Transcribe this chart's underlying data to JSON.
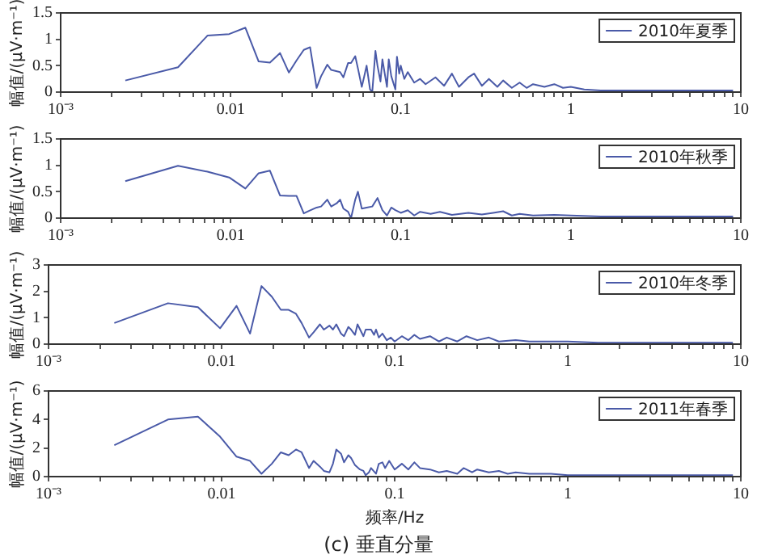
{
  "chart_data": [
    {
      "type": "line",
      "ylabel": "幅值/(μV·m⁻¹)",
      "log": "x",
      "legend": "top right",
      "grid": false,
      "marker": "none",
      "xlim": [
        0.001,
        10
      ],
      "xticks": [
        {
          "value": 0.001,
          "label": "10⁻³"
        },
        {
          "value": 0.002,
          "label": null
        },
        {
          "value": 0.003,
          "label": null
        },
        {
          "value": 0.004,
          "label": null
        },
        {
          "value": 0.005,
          "label": null
        },
        {
          "value": 0.006,
          "label": null
        },
        {
          "value": 0.007,
          "label": null
        },
        {
          "value": 0.008,
          "label": null
        },
        {
          "value": 0.009,
          "label": null
        },
        0.01,
        {
          "value": 0.02,
          "label": null
        },
        {
          "value": 0.03,
          "label": null
        },
        {
          "value": 0.04,
          "label": null
        },
        {
          "value": 0.05,
          "label": null
        },
        {
          "value": 0.06,
          "label": null
        },
        {
          "value": 0.07,
          "label": null
        },
        {
          "value": 0.08,
          "label": null
        },
        {
          "value": 0.09,
          "label": null
        },
        0.1,
        {
          "value": 0.2,
          "label": null
        },
        {
          "value": 0.3,
          "label": null
        },
        {
          "value": 0.4,
          "label": null
        },
        {
          "value": 0.5,
          "label": null
        },
        {
          "value": 0.6,
          "label": null
        },
        {
          "value": 0.7,
          "label": null
        },
        {
          "value": 0.8,
          "label": null
        },
        {
          "value": 0.9,
          "label": null
        },
        1,
        {
          "value": 2,
          "label": null
        },
        {
          "value": 3,
          "label": null
        },
        {
          "value": 4,
          "label": null
        },
        {
          "value": 5,
          "label": null
        },
        {
          "value": 6,
          "label": null
        },
        {
          "value": 7,
          "label": null
        },
        {
          "value": 8,
          "label": null
        },
        {
          "value": 9,
          "label": null
        },
        10
      ],
      "ylim": [
        0,
        1.5
      ],
      "yticks": [
        0,
        0.5,
        1,
        1.5
      ],
      "series": [
        {
          "name": "2010年夏季",
          "color": "#4a5aa8",
          "x": [
            0.0024,
            0.0049,
            0.0073,
            0.0098,
            0.0122,
            0.0146,
            0.017,
            0.0195,
            0.022,
            0.0244,
            0.0269,
            0.0293,
            0.032,
            0.034,
            0.037,
            0.039,
            0.044,
            0.046,
            0.049,
            0.051,
            0.054,
            0.056,
            0.059,
            0.061,
            0.063,
            0.066,
            0.068,
            0.071,
            0.073,
            0.076,
            0.078,
            0.081,
            0.083,
            0.085,
            0.088,
            0.093,
            0.095,
            0.098,
            0.1,
            0.105,
            0.11,
            0.12,
            0.13,
            0.14,
            0.16,
            0.18,
            0.2,
            0.22,
            0.25,
            0.27,
            0.3,
            0.33,
            0.37,
            0.4,
            0.45,
            0.5,
            0.55,
            0.6,
            0.7,
            0.8,
            0.9,
            1,
            1.2,
            1.5,
            2,
            3,
            4,
            6,
            9
          ],
          "values": [
            0.22,
            0.47,
            1.07,
            1.1,
            1.22,
            0.58,
            0.56,
            0.74,
            0.37,
            0.6,
            0.8,
            0.85,
            0.08,
            0.3,
            0.52,
            0.42,
            0.38,
            0.28,
            0.55,
            0.55,
            0.68,
            0.45,
            0.1,
            0.3,
            0.5,
            0.05,
            0,
            0.78,
            0.5,
            0.2,
            0.62,
            0.3,
            0.1,
            0.62,
            0.3,
            0.05,
            0.67,
            0.35,
            0.5,
            0.25,
            0.38,
            0.18,
            0.25,
            0.15,
            0.28,
            0.12,
            0.35,
            0.1,
            0.28,
            0.35,
            0.12,
            0.25,
            0.1,
            0.22,
            0.08,
            0.18,
            0.08,
            0.15,
            0.1,
            0.15,
            0.08,
            0.1,
            0.05,
            0.03,
            0.03,
            0.03,
            0.03,
            0.03,
            0.03
          ]
        }
      ]
    },
    {
      "type": "line",
      "ylabel": "幅值/(μV·m⁻¹)",
      "log": "x",
      "legend": "top right",
      "grid": false,
      "marker": "none",
      "xlim": [
        0.001,
        10
      ],
      "xticks": [
        {
          "value": 0.001,
          "label": "10⁻³"
        },
        {
          "value": 0.002,
          "label": null
        },
        {
          "value": 0.003,
          "label": null
        },
        {
          "value": 0.004,
          "label": null
        },
        {
          "value": 0.005,
          "label": null
        },
        {
          "value": 0.006,
          "label": null
        },
        {
          "value": 0.007,
          "label": null
        },
        {
          "value": 0.008,
          "label": null
        },
        {
          "value": 0.009,
          "label": null
        },
        0.01,
        {
          "value": 0.02,
          "label": null
        },
        {
          "value": 0.03,
          "label": null
        },
        {
          "value": 0.04,
          "label": null
        },
        {
          "value": 0.05,
          "label": null
        },
        {
          "value": 0.06,
          "label": null
        },
        {
          "value": 0.07,
          "label": null
        },
        {
          "value": 0.08,
          "label": null
        },
        {
          "value": 0.09,
          "label": null
        },
        0.1,
        {
          "value": 0.2,
          "label": null
        },
        {
          "value": 0.3,
          "label": null
        },
        {
          "value": 0.4,
          "label": null
        },
        {
          "value": 0.5,
          "label": null
        },
        {
          "value": 0.6,
          "label": null
        },
        {
          "value": 0.7,
          "label": null
        },
        {
          "value": 0.8,
          "label": null
        },
        {
          "value": 0.9,
          "label": null
        },
        1,
        {
          "value": 2,
          "label": null
        },
        {
          "value": 3,
          "label": null
        },
        {
          "value": 4,
          "label": null
        },
        {
          "value": 5,
          "label": null
        },
        {
          "value": 6,
          "label": null
        },
        {
          "value": 7,
          "label": null
        },
        {
          "value": 8,
          "label": null
        },
        {
          "value": 9,
          "label": null
        },
        10
      ],
      "ylim": [
        0,
        1.5
      ],
      "yticks": [
        0,
        0.5,
        1,
        1.5
      ],
      "series": [
        {
          "name": "2010年秋季",
          "color": "#4a5aa8",
          "x": [
            0.0024,
            0.0049,
            0.0073,
            0.0098,
            0.0122,
            0.0146,
            0.017,
            0.0195,
            0.022,
            0.0244,
            0.0269,
            0.029,
            0.032,
            0.034,
            0.037,
            0.039,
            0.042,
            0.044,
            0.046,
            0.049,
            0.051,
            0.054,
            0.056,
            0.059,
            0.063,
            0.068,
            0.073,
            0.078,
            0.083,
            0.088,
            0.093,
            0.1,
            0.11,
            0.12,
            0.13,
            0.15,
            0.17,
            0.2,
            0.25,
            0.3,
            0.35,
            0.4,
            0.45,
            0.5,
            0.6,
            0.8,
            1,
            1.5,
            2,
            3,
            5,
            9
          ],
          "values": [
            0.7,
            0.99,
            0.88,
            0.77,
            0.56,
            0.85,
            0.9,
            0.43,
            0.42,
            0.42,
            0.09,
            0.14,
            0.2,
            0.22,
            0.35,
            0.22,
            0.28,
            0.35,
            0.18,
            0.12,
            0,
            0.35,
            0.5,
            0.18,
            0.2,
            0.22,
            0.38,
            0.15,
            0.05,
            0.2,
            0.15,
            0.1,
            0.15,
            0.05,
            0.12,
            0.08,
            0.12,
            0.06,
            0.1,
            0.07,
            0.1,
            0.13,
            0.05,
            0.08,
            0.05,
            0.06,
            0.05,
            0.03,
            0.03,
            0.03,
            0.03,
            0.03
          ]
        }
      ]
    },
    {
      "type": "line",
      "ylabel": "幅值/(μV·m⁻¹)",
      "log": "x",
      "legend": "top right",
      "grid": false,
      "marker": "none",
      "xlim": [
        0.001,
        10
      ],
      "xticks": [
        {
          "value": 0.001,
          "label": "10⁻³"
        },
        {
          "value": 0.002,
          "label": null
        },
        {
          "value": 0.003,
          "label": null
        },
        {
          "value": 0.004,
          "label": null
        },
        {
          "value": 0.005,
          "label": null
        },
        {
          "value": 0.006,
          "label": null
        },
        {
          "value": 0.007,
          "label": null
        },
        {
          "value": 0.008,
          "label": null
        },
        {
          "value": 0.009,
          "label": null
        },
        0.01,
        {
          "value": 0.02,
          "label": null
        },
        {
          "value": 0.03,
          "label": null
        },
        {
          "value": 0.04,
          "label": null
        },
        {
          "value": 0.05,
          "label": null
        },
        {
          "value": 0.06,
          "label": null
        },
        {
          "value": 0.07,
          "label": null
        },
        {
          "value": 0.08,
          "label": null
        },
        {
          "value": 0.09,
          "label": null
        },
        0.1,
        {
          "value": 0.2,
          "label": null
        },
        {
          "value": 0.3,
          "label": null
        },
        {
          "value": 0.4,
          "label": null
        },
        {
          "value": 0.5,
          "label": null
        },
        {
          "value": 0.6,
          "label": null
        },
        {
          "value": 0.7,
          "label": null
        },
        {
          "value": 0.8,
          "label": null
        },
        {
          "value": 0.9,
          "label": null
        },
        1,
        {
          "value": 2,
          "label": null
        },
        {
          "value": 3,
          "label": null
        },
        {
          "value": 4,
          "label": null
        },
        {
          "value": 5,
          "label": null
        },
        {
          "value": 6,
          "label": null
        },
        {
          "value": 7,
          "label": null
        },
        {
          "value": 8,
          "label": null
        },
        {
          "value": 9,
          "label": null
        },
        10
      ],
      "ylim": [
        0,
        3
      ],
      "yticks": [
        0,
        1,
        2,
        3
      ],
      "series": [
        {
          "name": "2010年冬季",
          "color": "#4a5aa8",
          "x": [
            0.0024,
            0.0049,
            0.0073,
            0.0098,
            0.0122,
            0.0146,
            0.017,
            0.0195,
            0.022,
            0.0244,
            0.0269,
            0.029,
            0.032,
            0.034,
            0.037,
            0.039,
            0.042,
            0.044,
            0.046,
            0.049,
            0.051,
            0.054,
            0.056,
            0.059,
            0.061,
            0.066,
            0.068,
            0.073,
            0.076,
            0.078,
            0.081,
            0.085,
            0.09,
            0.095,
            0.1,
            0.11,
            0.12,
            0.13,
            0.14,
            0.16,
            0.18,
            0.2,
            0.23,
            0.26,
            0.3,
            0.35,
            0.4,
            0.5,
            0.6,
            0.8,
            1,
            1.5,
            2,
            4,
            9
          ],
          "values": [
            0.8,
            1.55,
            1.4,
            0.6,
            1.45,
            0.4,
            2.2,
            1.8,
            1.3,
            1.3,
            1.15,
            0.8,
            0.25,
            0.45,
            0.75,
            0.55,
            0.7,
            0.55,
            0.75,
            0.4,
            0.3,
            0.65,
            0.55,
            0.35,
            0.75,
            0.3,
            0.55,
            0.55,
            0.35,
            0.55,
            0.25,
            0.4,
            0.15,
            0.25,
            0.1,
            0.3,
            0.15,
            0.35,
            0.2,
            0.3,
            0.1,
            0.25,
            0.1,
            0.3,
            0.15,
            0.25,
            0.1,
            0.15,
            0.1,
            0.1,
            0.1,
            0.05,
            0.05,
            0.05,
            0.05
          ]
        }
      ]
    },
    {
      "type": "line",
      "ylabel": "幅值/(μV·m⁻¹)",
      "xlabel": "频率/Hz",
      "log": "x",
      "legend": "top right",
      "grid": false,
      "marker": "none",
      "annotations": [
        "(c) 垂直分量"
      ],
      "xlim": [
        0.001,
        10
      ],
      "xticks": [
        {
          "value": 0.001,
          "label": "10⁻³"
        },
        {
          "value": 0.002,
          "label": null
        },
        {
          "value": 0.003,
          "label": null
        },
        {
          "value": 0.004,
          "label": null
        },
        {
          "value": 0.005,
          "label": null
        },
        {
          "value": 0.006,
          "label": null
        },
        {
          "value": 0.007,
          "label": null
        },
        {
          "value": 0.008,
          "label": null
        },
        {
          "value": 0.009,
          "label": null
        },
        0.01,
        {
          "value": 0.02,
          "label": null
        },
        {
          "value": 0.03,
          "label": null
        },
        {
          "value": 0.04,
          "label": null
        },
        {
          "value": 0.05,
          "label": null
        },
        {
          "value": 0.06,
          "label": null
        },
        {
          "value": 0.07,
          "label": null
        },
        {
          "value": 0.08,
          "label": null
        },
        {
          "value": 0.09,
          "label": null
        },
        0.1,
        {
          "value": 0.2,
          "label": null
        },
        {
          "value": 0.3,
          "label": null
        },
        {
          "value": 0.4,
          "label": null
        },
        {
          "value": 0.5,
          "label": null
        },
        {
          "value": 0.6,
          "label": null
        },
        {
          "value": 0.7,
          "label": null
        },
        {
          "value": 0.8,
          "label": null
        },
        {
          "value": 0.9,
          "label": null
        },
        1,
        {
          "value": 2,
          "label": null
        },
        {
          "value": 3,
          "label": null
        },
        {
          "value": 4,
          "label": null
        },
        {
          "value": 5,
          "label": null
        },
        {
          "value": 6,
          "label": null
        },
        {
          "value": 7,
          "label": null
        },
        {
          "value": 8,
          "label": null
        },
        {
          "value": 9,
          "label": null
        },
        10
      ],
      "ylim": [
        0,
        6
      ],
      "yticks": [
        0,
        2,
        4,
        6
      ],
      "series": [
        {
          "name": "2011年春季",
          "color": "#4a5aa8",
          "x": [
            0.0024,
            0.0049,
            0.0073,
            0.0098,
            0.0122,
            0.0146,
            0.017,
            0.0195,
            0.022,
            0.0244,
            0.0269,
            0.029,
            0.032,
            0.034,
            0.037,
            0.039,
            0.042,
            0.044,
            0.046,
            0.049,
            0.051,
            0.054,
            0.056,
            0.059,
            0.063,
            0.066,
            0.068,
            0.071,
            0.073,
            0.078,
            0.081,
            0.085,
            0.088,
            0.093,
            0.1,
            0.11,
            0.12,
            0.13,
            0.14,
            0.16,
            0.18,
            0.2,
            0.23,
            0.25,
            0.28,
            0.3,
            0.35,
            0.4,
            0.45,
            0.5,
            0.6,
            0.8,
            1,
            1.5,
            2,
            4,
            9
          ],
          "values": [
            2.2,
            4,
            4.2,
            2.8,
            1.4,
            1.1,
            0.2,
            0.9,
            1.7,
            1.5,
            1.9,
            1.7,
            0.6,
            1.1,
            0.7,
            0.4,
            0.3,
            0.9,
            1.9,
            1.6,
            1,
            1.5,
            1.3,
            0.8,
            0.5,
            0.4,
            0.1,
            0.3,
            0.6,
            0.2,
            0.9,
            1,
            0.6,
            1.1,
            0.5,
            0.9,
            0.5,
            1,
            0.6,
            0.5,
            0.3,
            0.4,
            0.2,
            0.6,
            0.3,
            0.5,
            0.3,
            0.4,
            0.2,
            0.3,
            0.2,
            0.2,
            0.1,
            0.1,
            0.1,
            0.1,
            0.1
          ]
        }
      ]
    }
  ]
}
